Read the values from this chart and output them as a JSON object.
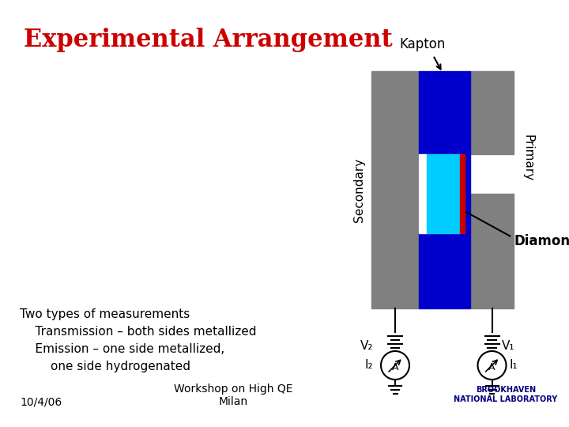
{
  "title": "Experimental Arrangement",
  "title_color": "#cc0000",
  "title_fontsize": 22,
  "background_color": "#ffffff",
  "text_color": "#000000",
  "kapton_label": "Kapton",
  "secondary_label": "Secondary",
  "primary_label": "Primary",
  "diamond_label": "Diamond",
  "left_text_lines": [
    "Two types of measurements",
    "    Transmission – both sides metallized",
    "    Emission – one side metallized,",
    "        one side hydrogenated"
  ],
  "footer_left": "10/4/06",
  "footer_center": "Workshop on High QE\nMilan",
  "diagram_colors": {
    "gray": "#808080",
    "blue": "#0000cc",
    "cyan": "#00ccff",
    "red": "#cc0000",
    "white": "#ffffff",
    "black": "#000000"
  },
  "v2_label": "V₂",
  "v1_label": "V₁",
  "i2_label": "I₂",
  "i1_label": "I₁"
}
